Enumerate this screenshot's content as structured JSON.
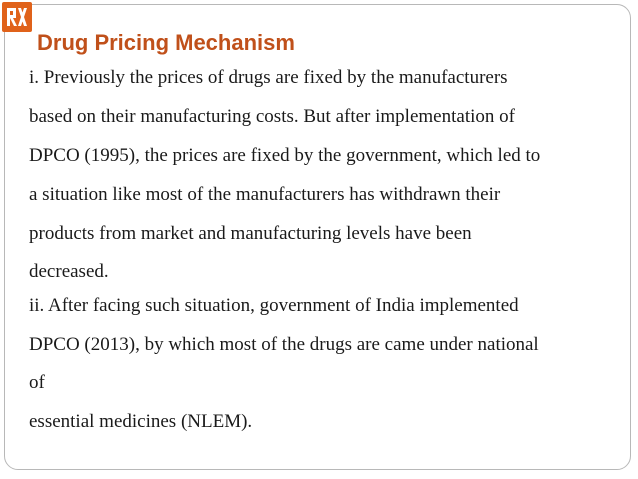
{
  "slide": {
    "title": "Drug Pricing Mechanism",
    "logo_icon": "brand-logo-icon",
    "accent_color": "#e0621a",
    "title_color": "#c0501a",
    "lines": [
      "i. Previously the prices of drugs are fixed by the manufacturers",
      "based on their manufacturing costs. But after implementation of",
      "DPCO (1995), the prices are fixed by the government, which led to",
      "a situation like most of the manufacturers has withdrawn their",
      "products from market and manufacturing levels have been",
      "decreased.",
      "ii. After facing such situation, government of India implemented",
      "DPCO (2013), by which most of the drugs are came under national",
      "of",
      "essential medicines (NLEM)."
    ]
  }
}
